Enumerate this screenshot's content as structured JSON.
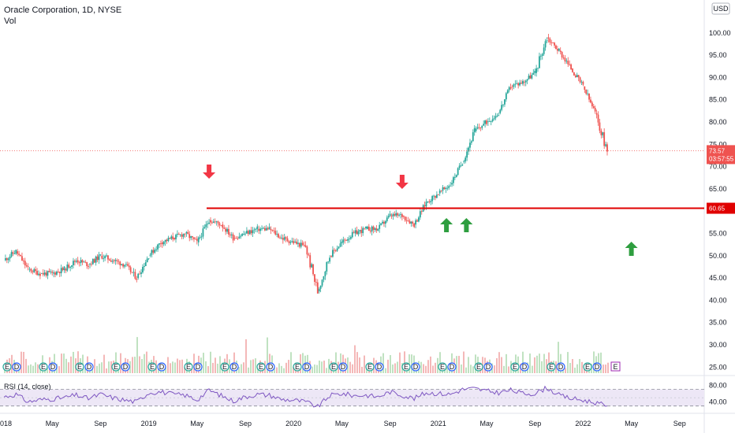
{
  "header": {
    "symbol_line": "Oracle Corporation, 1D, NYSE",
    "volume_label": "Vol"
  },
  "price_scale": {
    "currency": "USD",
    "ticks": [
      "100.00",
      "95.00",
      "90.00",
      "85.00",
      "80.00",
      "75.00",
      "70.00",
      "65.00",
      "60.00",
      "55.00",
      "50.00",
      "45.00",
      "40.00",
      "35.00",
      "30.00",
      "25.00"
    ]
  },
  "rsi_pane": {
    "label": "RSI (14, close)",
    "ticks": [
      "80.00",
      "40.00"
    ]
  },
  "time_axis": {
    "ticks": [
      "2018",
      "May",
      "Sep",
      "2019",
      "May",
      "Sep",
      "2020",
      "May",
      "Sep",
      "2021",
      "May",
      "Sep",
      "2022",
      "May",
      "Sep"
    ]
  },
  "badges": {
    "last_price": "73.57",
    "countdown": "03:57:55",
    "level": "60.65"
  },
  "colors": {
    "up": "#26a69a",
    "down": "#ef5350",
    "level_line": "#e00000",
    "arrow_red": "#f23645",
    "arrow_green": "#2e9e3f",
    "rsi_line": "#7e57c2",
    "rsi_band": "#ede7f6",
    "volume_up": "#a5d6a7",
    "volume_down": "#ef9a9a"
  },
  "event_markers": {
    "earnings_letter": "E",
    "dividend_letter": "D"
  },
  "chart_data": {
    "type": "line",
    "title": "Oracle Corporation, 1D, NYSE",
    "ylim": [
      25,
      105
    ],
    "x": [
      "2018-01",
      "2018-02",
      "2018-03",
      "2018-04",
      "2018-05",
      "2018-06",
      "2018-07",
      "2018-08",
      "2018-09",
      "2018-10",
      "2018-11",
      "2018-12",
      "2019-01",
      "2019-02",
      "2019-03",
      "2019-04",
      "2019-05",
      "2019-06",
      "2019-07",
      "2019-08",
      "2019-09",
      "2019-10",
      "2019-11",
      "2019-12",
      "2020-01",
      "2020-02",
      "2020-03",
      "2020-04",
      "2020-05",
      "2020-06",
      "2020-07",
      "2020-08",
      "2020-09",
      "2020-10",
      "2020-11",
      "2020-12",
      "2021-01",
      "2021-02",
      "2021-03",
      "2021-04",
      "2021-05",
      "2021-06",
      "2021-07",
      "2021-08",
      "2021-09",
      "2021-10",
      "2021-11",
      "2021-12",
      "2022-01",
      "2022-02",
      "2022-03"
    ],
    "series": [
      {
        "name": "",
        "values": [
          49,
          51,
          47,
          46,
          46,
          47,
          49,
          48,
          50,
          49,
          48,
          45,
          50,
          53,
          54,
          55,
          53,
          58,
          57,
          54,
          55,
          56,
          56,
          54,
          53,
          52,
          42,
          50,
          53,
          55,
          56,
          56,
          59,
          59,
          57,
          62,
          64,
          66,
          71,
          78,
          80,
          82,
          88,
          89,
          91,
          99,
          96,
          92,
          88,
          82,
          73.57
        ]
      }
    ],
    "level": 60.65,
    "annotations": [
      {
        "type": "arrow-down",
        "date": "2019-06"
      },
      {
        "type": "arrow-down",
        "date": "2020-10"
      },
      {
        "type": "arrow-up",
        "date": "2021-02"
      },
      {
        "type": "arrow-up",
        "date": "2021-03"
      },
      {
        "type": "arrow-up",
        "date": "2022-05"
      }
    ],
    "rsi_ylim": [
      20,
      90
    ],
    "rsi_values": [
      52,
      58,
      40,
      45,
      47,
      50,
      56,
      48,
      58,
      50,
      44,
      40,
      62,
      64,
      58,
      56,
      45,
      68,
      55,
      42,
      52,
      58,
      56,
      46,
      44,
      40,
      28,
      55,
      60,
      55,
      56,
      52,
      64,
      56,
      48,
      62,
      60,
      58,
      70,
      72,
      66,
      62,
      68,
      60,
      60,
      74,
      56,
      48,
      44,
      38,
      30
    ]
  }
}
